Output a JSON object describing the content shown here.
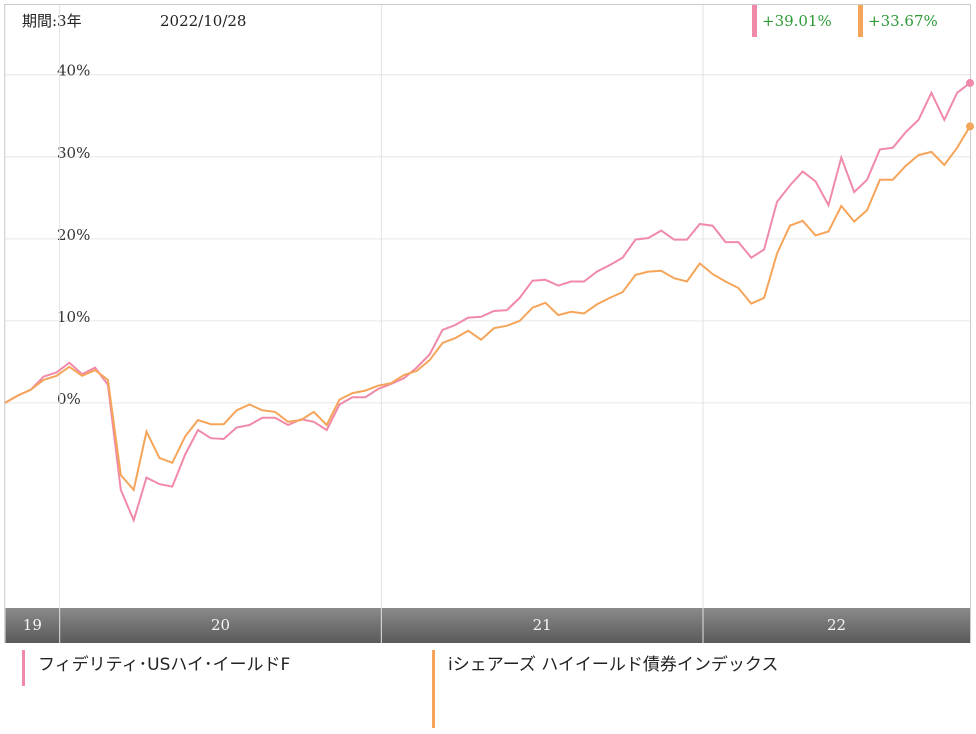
{
  "chart_data": {
    "type": "line",
    "period_label": "期間:3年",
    "date": "2022/10/28",
    "x": [
      2019.83,
      2019.87,
      2019.91,
      2019.95,
      2019.99,
      2020.03,
      2020.07,
      2020.11,
      2020.15,
      2020.19,
      2020.23,
      2020.27,
      2020.31,
      2020.35,
      2020.39,
      2020.43,
      2020.47,
      2020.51,
      2020.55,
      2020.59,
      2020.63,
      2020.67,
      2020.71,
      2020.75,
      2020.79,
      2020.83,
      2020.87,
      2020.91,
      2020.95,
      2020.99,
      2021.03,
      2021.07,
      2021.11,
      2021.15,
      2021.19,
      2021.23,
      2021.27,
      2021.31,
      2021.35,
      2021.39,
      2021.43,
      2021.47,
      2021.51,
      2021.55,
      2021.59,
      2021.63,
      2021.67,
      2021.71,
      2021.75,
      2021.79,
      2021.83,
      2021.87,
      2021.91,
      2021.95,
      2021.99,
      2022.03,
      2022.07,
      2022.11,
      2022.15,
      2022.19,
      2022.23,
      2022.27,
      2022.31,
      2022.35,
      2022.39,
      2022.43,
      2022.47,
      2022.51,
      2022.55,
      2022.59,
      2022.63,
      2022.67,
      2022.71,
      2022.75,
      2022.79,
      2022.83
    ],
    "series": [
      {
        "name": "フィデリティ･USハイ･イールドF",
        "color": "#f08aa8",
        "change": 39.01,
        "change_label": "+39.01%",
        "values": [
          0.0,
          0.9,
          1.6,
          3.2,
          3.7,
          4.9,
          3.5,
          4.3,
          2.2,
          -10.6,
          -14.3,
          -9.1,
          -9.9,
          -10.2,
          -6.3,
          -3.3,
          -4.3,
          -4.4,
          -3.0,
          -2.7,
          -1.8,
          -1.8,
          -2.7,
          -2.0,
          -2.3,
          -3.3,
          -0.2,
          0.7,
          0.7,
          1.7,
          2.3,
          3.0,
          4.3,
          5.9,
          8.9,
          9.5,
          10.4,
          10.5,
          11.2,
          11.3,
          12.8,
          14.9,
          15.0,
          14.3,
          14.8,
          14.8,
          16.0,
          16.8,
          17.7,
          19.9,
          20.1,
          21.0,
          19.9,
          19.9,
          21.8,
          21.6,
          19.6,
          19.6,
          17.7,
          18.7,
          24.5,
          26.5,
          28.2,
          27.0,
          24.1,
          29.9,
          25.7,
          27.2,
          30.9,
          31.1,
          33.0,
          34.5,
          37.8,
          34.5,
          37.8,
          39.0
        ]
      },
      {
        "name": "iシェアーズ ハイイールド債券インデックス",
        "color": "#f5a55a",
        "change": 33.67,
        "change_label": "+33.67%",
        "values": [
          0.0,
          0.9,
          1.6,
          2.8,
          3.3,
          4.4,
          3.3,
          4.0,
          2.8,
          -8.8,
          -10.6,
          -3.5,
          -6.7,
          -7.3,
          -4.1,
          -2.1,
          -2.6,
          -2.6,
          -0.9,
          -0.2,
          -0.9,
          -1.1,
          -2.3,
          -2.1,
          -1.1,
          -2.7,
          0.4,
          1.2,
          1.5,
          2.1,
          2.4,
          3.4,
          3.9,
          5.2,
          7.3,
          7.9,
          8.8,
          7.7,
          9.1,
          9.4,
          10.0,
          11.6,
          12.2,
          10.7,
          11.1,
          10.9,
          12.0,
          12.8,
          13.5,
          15.6,
          16.0,
          16.1,
          15.2,
          14.8,
          17.0,
          15.7,
          14.8,
          14.0,
          12.1,
          12.8,
          18.2,
          21.6,
          22.2,
          20.4,
          20.9,
          24.0,
          22.1,
          23.5,
          27.2,
          27.2,
          28.9,
          30.2,
          30.6,
          29.0,
          31.1,
          33.7
        ]
      }
    ],
    "xlim": [
      2019.83,
      2022.83
    ],
    "xticks": [
      {
        "value": 2019.83,
        "label": "19"
      },
      {
        "value": 2020,
        "label": "20"
      },
      {
        "value": 2021,
        "label": "21"
      },
      {
        "value": 2022,
        "label": "22"
      }
    ],
    "ylim": [
      -25,
      48.5
    ],
    "yticks": [
      {
        "value": 0,
        "label": "0%"
      },
      {
        "value": 10,
        "label": "10%"
      },
      {
        "value": 20,
        "label": "20%"
      },
      {
        "value": 30,
        "label": "30%"
      },
      {
        "value": 40,
        "label": "40%"
      }
    ],
    "grid": true
  }
}
